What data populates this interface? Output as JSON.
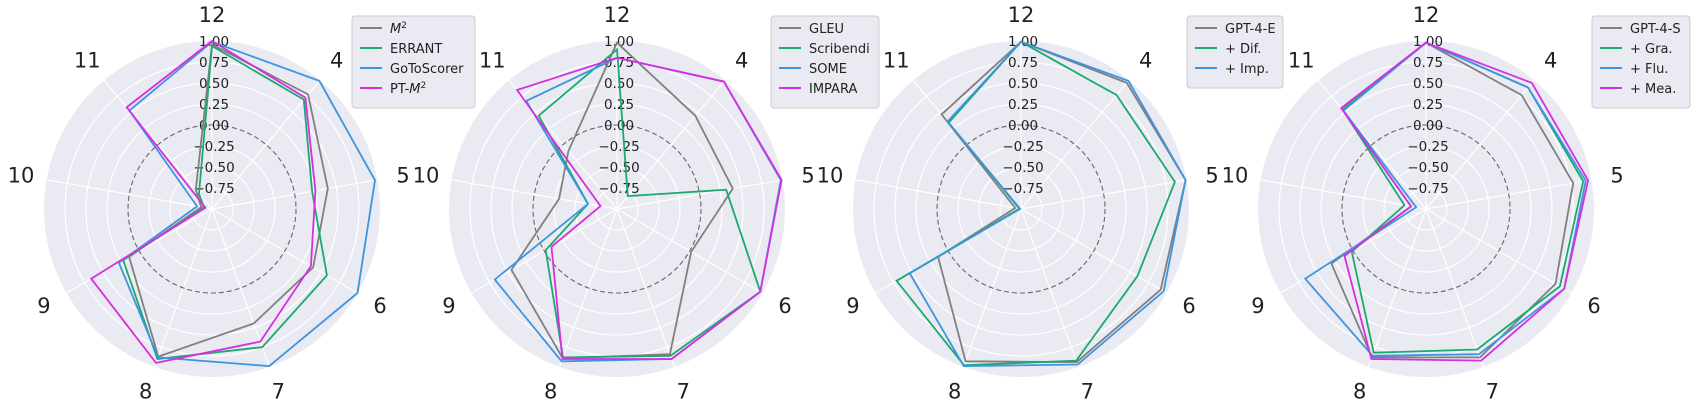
{
  "chart_data": [
    {
      "type": "radar",
      "categories": [
        "12",
        "4",
        "5",
        "6",
        "7",
        "8",
        "9",
        "10",
        "11"
      ],
      "rlim": [
        -1.0,
        1.0
      ],
      "rticks": [
        "1.00",
        "0.75",
        "0.50",
        "0.25",
        "0.00",
        "−0.25",
        "−0.50",
        "−0.75"
      ],
      "legend_position": "right",
      "series": [
        {
          "name": "M²",
          "color": "#808080",
          "values": [
            0.96,
            0.78,
            0.4,
            0.39,
            0.45,
            0.87,
            0.14,
            -0.87,
            -0.7
          ]
        },
        {
          "name": "ERRANT",
          "color": "#1aaa6e",
          "values": [
            0.94,
            0.7,
            0.21,
            0.58,
            0.75,
            0.9,
            0.22,
            -0.9,
            -0.76
          ]
        },
        {
          "name": "GoToScorer",
          "color": "#3d95e0",
          "values": [
            0.99,
            0.99,
            0.97,
            1.0,
            0.99,
            0.88,
            0.28,
            -0.82,
            0.53
          ]
        },
        {
          "name": "PT-M²",
          "color": "#d62ee0",
          "values": [
            1.0,
            0.73,
            0.25,
            0.36,
            0.68,
            0.95,
            0.66,
            -0.92,
            0.58
          ]
        }
      ]
    },
    {
      "type": "radar",
      "categories": [
        "12",
        "4",
        "5",
        "6",
        "7",
        "8",
        "9",
        "10",
        "11"
      ],
      "rlim": [
        -1.0,
        1.0
      ],
      "rticks": [
        "1.00",
        "0.75",
        "0.50",
        "0.25",
        "0.00",
        "−0.25",
        "−0.50",
        "−0.75"
      ],
      "legend_position": "right",
      "series": [
        {
          "name": "GLEU",
          "color": "#808080",
          "values": [
            0.98,
            0.45,
            0.4,
            0.02,
            0.84,
            0.89,
            0.45,
            -0.3,
            -0.1
          ]
        },
        {
          "name": "Scribendi",
          "color": "#1aaa6e",
          "values": [
            0.9,
            -0.8,
            0.32,
            0.97,
            0.86,
            0.88,
            -0.02,
            -0.65,
            0.45
          ]
        },
        {
          "name": "SOME",
          "color": "#3d95e0",
          "values": [
            0.8,
            0.98,
            0.98,
            0.97,
            0.9,
            0.93,
            0.68,
            -0.65,
            0.68
          ]
        },
        {
          "name": "IMPARA",
          "color": "#d62ee0",
          "values": [
            0.8,
            0.98,
            0.99,
            0.97,
            0.9,
            0.9,
            -0.1,
            -0.8,
            0.85
          ]
        }
      ]
    },
    {
      "type": "radar",
      "categories": [
        "12",
        "4",
        "5",
        "6",
        "7",
        "8",
        "9",
        "10",
        "11"
      ],
      "rlim": [
        -1.0,
        1.0
      ],
      "rticks": [
        "1.00",
        "0.75",
        "0.50",
        "0.25",
        "0.00",
        "−0.25",
        "−0.50",
        "−0.75"
      ],
      "legend_position": "right",
      "series": [
        {
          "name": "GPT-4-E",
          "color": "#808080",
          "values": [
            0.99,
            0.96,
            0.99,
            0.92,
            0.94,
            0.93,
            0.14,
            -0.93,
            0.47
          ]
        },
        {
          "name": "+ Dif.",
          "color": "#1aaa6e",
          "values": [
            0.99,
            0.77,
            0.86,
            0.6,
            0.92,
            0.98,
            0.71,
            -0.98,
            0.34
          ]
        },
        {
          "name": "+ Imp.",
          "color": "#3d95e0",
          "values": [
            0.99,
            0.99,
            0.99,
            0.96,
            0.97,
            0.99,
            0.53,
            -0.99,
            0.36
          ]
        }
      ]
    },
    {
      "type": "radar",
      "categories": [
        "12",
        "4",
        "5",
        "6",
        "7",
        "8",
        "9",
        "10",
        "11"
      ],
      "rlim": [
        -1.0,
        1.0
      ],
      "rticks": [
        "1.00",
        "0.75",
        "0.50",
        "0.25",
        "0.00",
        "−0.25",
        "−0.50",
        "−0.75"
      ],
      "legend_position": "right",
      "series": [
        {
          "name": "GPT-4-S",
          "color": "#808080",
          "values": [
            0.98,
            0.77,
            0.78,
            0.78,
            0.88,
            0.88,
            0.3,
            -0.82,
            0.56
          ]
        },
        {
          "name": "+ Gra.",
          "color": "#1aaa6e",
          "values": [
            0.98,
            0.89,
            0.9,
            0.84,
            0.78,
            0.82,
            0.02,
            -0.74,
            0.54
          ]
        },
        {
          "name": "+ Flu.",
          "color": "#3d95e0",
          "values": [
            0.98,
            0.89,
            0.93,
            0.9,
            0.84,
            0.86,
            0.66,
            -0.88,
            0.53
          ]
        },
        {
          "name": "+ Mea.",
          "color": "#d62ee0",
          "values": [
            0.98,
            0.96,
            0.96,
            0.9,
            0.92,
            0.9,
            0.12,
            -0.82,
            0.57
          ]
        }
      ]
    }
  ]
}
